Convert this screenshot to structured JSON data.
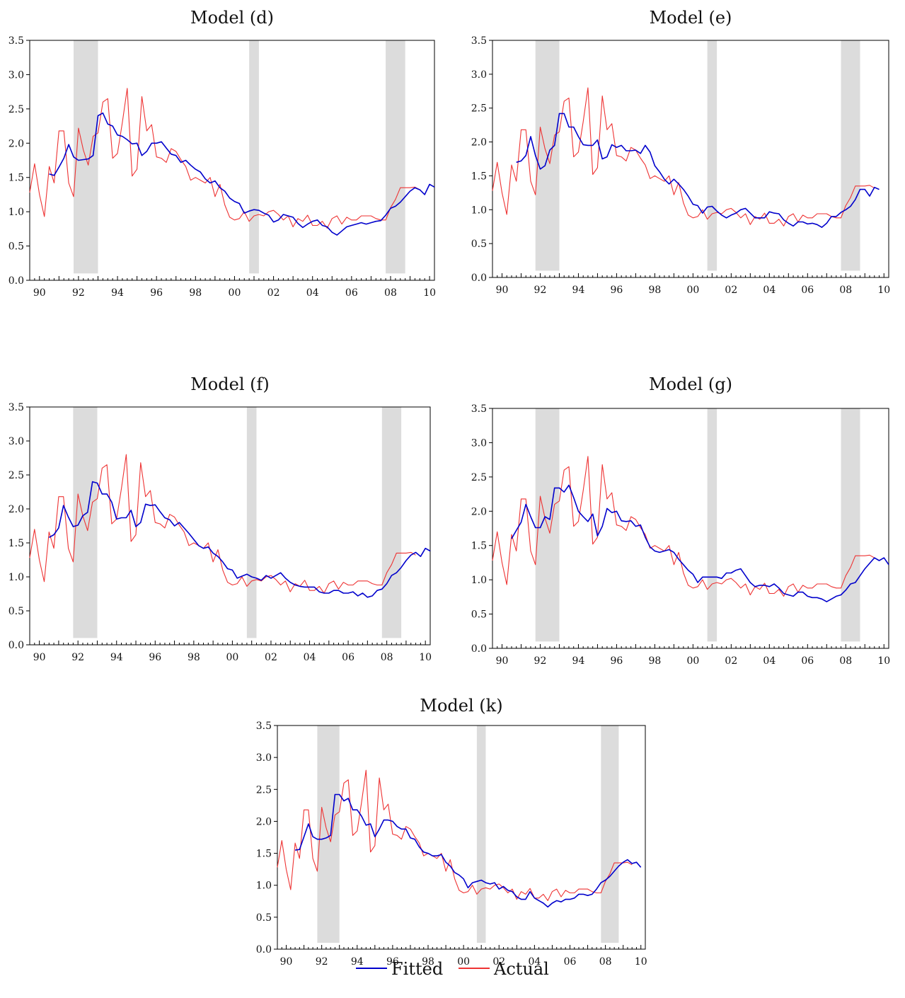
{
  "chart_data": [
    {
      "type": "line",
      "title": "Model (d)",
      "x_tick_labels": [
        "90",
        "92",
        "94",
        "96",
        "98",
        "00",
        "02",
        "04",
        "06",
        "08",
        "10"
      ],
      "y_tick_labels": [
        "0.0",
        "0.5",
        "1.0",
        "1.5",
        "2.0",
        "2.5",
        "3.0",
        "3.5"
      ],
      "ylim": [
        0,
        3.5
      ],
      "xlim": [
        1989.5,
        2010.25
      ],
      "recessions": [
        [
          1991.75,
          1993.0
        ],
        [
          2000.75,
          2001.25
        ],
        [
          2007.75,
          2008.75
        ]
      ],
      "series": [
        {
          "name": "Fitted",
          "color": "#0000cc",
          "start": 1990.5,
          "values": [
            1.55,
            1.53,
            1.65,
            1.78,
            1.98,
            1.8,
            1.75,
            1.76,
            1.77,
            1.82,
            2.4,
            2.44,
            2.28,
            2.25,
            2.12,
            2.1,
            2.05,
            1.99,
            2.0,
            1.82,
            1.88,
            2.0,
            2.0,
            2.02,
            1.93,
            1.84,
            1.82,
            1.72,
            1.75,
            1.68,
            1.62,
            1.58,
            1.48,
            1.42,
            1.45,
            1.35,
            1.3,
            1.2,
            1.15,
            1.12,
            0.98,
            1.01,
            1.03,
            1.02,
            0.98,
            0.95,
            0.85,
            0.88,
            0.96,
            0.94,
            0.92,
            0.83,
            0.77,
            0.82,
            0.86,
            0.88,
            0.8,
            0.78,
            0.7,
            0.66,
            0.72,
            0.78,
            0.8,
            0.82,
            0.84,
            0.82,
            0.84,
            0.86,
            0.87,
            0.95,
            1.05,
            1.08,
            1.14,
            1.22,
            1.3,
            1.35,
            1.32,
            1.25,
            1.4,
            1.36
          ]
        },
        {
          "name": "Actual",
          "color": "#ee3333",
          "start": 1989.5,
          "values": [
            1.28,
            1.7,
            1.25,
            0.93,
            1.66,
            1.42,
            2.18,
            2.18,
            1.42,
            1.22,
            2.22,
            1.9,
            1.68,
            2.1,
            2.15,
            2.6,
            2.65,
            1.78,
            1.85,
            2.3,
            2.8,
            1.52,
            1.62,
            2.68,
            2.18,
            2.27,
            1.8,
            1.78,
            1.72,
            1.92,
            1.88,
            1.76,
            1.66,
            1.46,
            1.5,
            1.46,
            1.42,
            1.5,
            1.22,
            1.4,
            1.1,
            0.92,
            0.88,
            0.9,
            1.0,
            0.86,
            0.94,
            0.96,
            0.94,
            1.0,
            1.02,
            0.96,
            0.88,
            0.94,
            0.78,
            0.9,
            0.86,
            0.95,
            0.8,
            0.8,
            0.86,
            0.76,
            0.9,
            0.94,
            0.82,
            0.92,
            0.88,
            0.88,
            0.94,
            0.94,
            0.94,
            0.9,
            0.88,
            0.88,
            1.06,
            1.18,
            1.35,
            1.35,
            1.35,
            1.36,
            1.32
          ]
        }
      ]
    },
    {
      "type": "line",
      "title": "Model (e)",
      "x_tick_labels": [
        "90",
        "92",
        "94",
        "96",
        "98",
        "00",
        "02",
        "04",
        "06",
        "08",
        "10"
      ],
      "y_tick_labels": [
        "0.0",
        "0.5",
        "1.0",
        "1.5",
        "2.0",
        "2.5",
        "3.0",
        "3.5"
      ],
      "ylim": [
        0,
        3.5
      ],
      "xlim": [
        1989.5,
        2010.25
      ],
      "recessions": [
        [
          1991.75,
          1993.0
        ],
        [
          2000.75,
          2001.25
        ],
        [
          2007.75,
          2008.75
        ]
      ],
      "series": [
        {
          "name": "Fitted",
          "color": "#0000cc",
          "start": 1990.75,
          "values": [
            1.7,
            1.72,
            1.8,
            2.08,
            1.8,
            1.6,
            1.65,
            1.88,
            1.95,
            2.42,
            2.42,
            2.22,
            2.22,
            2.08,
            1.96,
            1.95,
            1.95,
            2.03,
            1.75,
            1.78,
            1.96,
            1.92,
            1.95,
            1.87,
            1.87,
            1.88,
            1.83,
            1.95,
            1.85,
            1.65,
            1.56,
            1.45,
            1.38,
            1.45,
            1.38,
            1.3,
            1.2,
            1.08,
            1.06,
            0.95,
            1.04,
            1.05,
            0.98,
            0.92,
            0.88,
            0.92,
            0.95,
            1.0,
            1.02,
            0.95,
            0.88,
            0.88,
            0.88,
            0.97,
            0.95,
            0.94,
            0.85,
            0.8,
            0.76,
            0.82,
            0.82,
            0.79,
            0.8,
            0.78,
            0.74,
            0.8,
            0.9,
            0.9,
            0.96,
            1.0,
            1.05,
            1.15,
            1.3,
            1.3,
            1.2,
            1.33,
            1.3
          ]
        },
        {
          "name": "Actual",
          "color": "#ee3333",
          "start": 1989.5,
          "values": [
            1.28,
            1.7,
            1.25,
            0.93,
            1.66,
            1.42,
            2.18,
            2.18,
            1.42,
            1.22,
            2.22,
            1.9,
            1.68,
            2.1,
            2.15,
            2.6,
            2.65,
            1.78,
            1.85,
            2.3,
            2.8,
            1.52,
            1.62,
            2.68,
            2.18,
            2.27,
            1.8,
            1.78,
            1.72,
            1.92,
            1.88,
            1.76,
            1.66,
            1.46,
            1.5,
            1.46,
            1.42,
            1.5,
            1.22,
            1.4,
            1.1,
            0.92,
            0.88,
            0.9,
            1.0,
            0.86,
            0.94,
            0.96,
            0.94,
            1.0,
            1.02,
            0.96,
            0.88,
            0.94,
            0.78,
            0.9,
            0.86,
            0.95,
            0.8,
            0.8,
            0.86,
            0.76,
            0.9,
            0.94,
            0.82,
            0.92,
            0.88,
            0.88,
            0.94,
            0.94,
            0.94,
            0.9,
            0.88,
            0.88,
            1.06,
            1.18,
            1.35,
            1.35,
            1.35,
            1.36,
            1.32
          ]
        }
      ]
    },
    {
      "type": "line",
      "title": "Model (f)",
      "x_tick_labels": [
        "90",
        "92",
        "94",
        "96",
        "98",
        "00",
        "02",
        "04",
        "06",
        "08",
        "10"
      ],
      "y_tick_labels": [
        "0.0",
        "0.5",
        "1.0",
        "1.5",
        "2.0",
        "2.5",
        "3.0",
        "3.5"
      ],
      "ylim": [
        0,
        3.5
      ],
      "xlim": [
        1989.5,
        2010.25
      ],
      "recessions": [
        [
          1991.75,
          1993.0
        ],
        [
          2000.75,
          2001.25
        ],
        [
          2007.75,
          2008.75
        ]
      ],
      "series": [
        {
          "name": "Fitted",
          "color": "#0000cc",
          "start": 1990.5,
          "values": [
            1.58,
            1.62,
            1.72,
            2.05,
            1.88,
            1.74,
            1.76,
            1.9,
            1.95,
            2.4,
            2.38,
            2.22,
            2.22,
            2.1,
            1.85,
            1.87,
            1.87,
            1.98,
            1.74,
            1.8,
            2.07,
            2.05,
            2.06,
            1.96,
            1.87,
            1.84,
            1.75,
            1.8,
            1.72,
            1.64,
            1.55,
            1.46,
            1.42,
            1.44,
            1.35,
            1.3,
            1.22,
            1.12,
            1.1,
            0.98,
            1.01,
            1.04,
            1.0,
            0.98,
            0.95,
            1.02,
            0.98,
            1.02,
            1.06,
            0.98,
            0.92,
            0.88,
            0.86,
            0.85,
            0.85,
            0.85,
            0.78,
            0.76,
            0.76,
            0.8,
            0.8,
            0.76,
            0.76,
            0.78,
            0.72,
            0.76,
            0.7,
            0.72,
            0.8,
            0.82,
            0.9,
            1.02,
            1.06,
            1.14,
            1.24,
            1.32,
            1.36,
            1.3,
            1.42,
            1.38
          ]
        },
        {
          "name": "Actual",
          "color": "#ee3333",
          "start": 1989.5,
          "values": [
            1.28,
            1.7,
            1.25,
            0.93,
            1.66,
            1.42,
            2.18,
            2.18,
            1.42,
            1.22,
            2.22,
            1.9,
            1.68,
            2.1,
            2.15,
            2.6,
            2.65,
            1.78,
            1.85,
            2.3,
            2.8,
            1.52,
            1.62,
            2.68,
            2.18,
            2.27,
            1.8,
            1.78,
            1.72,
            1.92,
            1.88,
            1.76,
            1.66,
            1.46,
            1.5,
            1.46,
            1.42,
            1.5,
            1.22,
            1.4,
            1.1,
            0.92,
            0.88,
            0.9,
            1.0,
            0.86,
            0.94,
            0.96,
            0.94,
            1.0,
            1.02,
            0.96,
            0.88,
            0.94,
            0.78,
            0.9,
            0.86,
            0.95,
            0.8,
            0.8,
            0.86,
            0.76,
            0.9,
            0.94,
            0.82,
            0.92,
            0.88,
            0.88,
            0.94,
            0.94,
            0.94,
            0.9,
            0.88,
            0.88,
            1.06,
            1.18,
            1.35,
            1.35,
            1.35,
            1.36,
            1.32
          ]
        }
      ]
    },
    {
      "type": "line",
      "title": "Model (g)",
      "x_tick_labels": [
        "90",
        "92",
        "94",
        "96",
        "98",
        "00",
        "02",
        "04",
        "06",
        "08",
        "10"
      ],
      "y_tick_labels": [
        "0.0",
        "0.5",
        "1.0",
        "1.5",
        "2.0",
        "2.5",
        "3.0",
        "3.5"
      ],
      "ylim": [
        0,
        3.5
      ],
      "xlim": [
        1989.5,
        2010.25
      ],
      "recessions": [
        [
          1991.75,
          1993.0
        ],
        [
          2000.75,
          2001.25
        ],
        [
          2007.75,
          2008.75
        ]
      ],
      "series": [
        {
          "name": "Fitted",
          "color": "#0000cc",
          "start": 1990.5,
          "values": [
            1.6,
            1.72,
            1.84,
            2.1,
            1.92,
            1.76,
            1.76,
            1.92,
            1.88,
            2.34,
            2.34,
            2.28,
            2.38,
            2.2,
            2.0,
            1.92,
            1.85,
            1.96,
            1.64,
            1.78,
            2.04,
            1.98,
            2.0,
            1.86,
            1.85,
            1.86,
            1.78,
            1.8,
            1.62,
            1.48,
            1.42,
            1.4,
            1.42,
            1.44,
            1.4,
            1.3,
            1.22,
            1.14,
            1.08,
            0.96,
            1.04,
            1.04,
            1.04,
            1.04,
            1.02,
            1.1,
            1.1,
            1.14,
            1.16,
            1.06,
            0.96,
            0.9,
            0.92,
            0.92,
            0.9,
            0.94,
            0.88,
            0.8,
            0.78,
            0.76,
            0.82,
            0.82,
            0.76,
            0.74,
            0.74,
            0.72,
            0.68,
            0.72,
            0.76,
            0.78,
            0.85,
            0.94,
            0.96,
            1.06,
            1.16,
            1.24,
            1.32,
            1.28,
            1.32,
            1.22
          ]
        },
        {
          "name": "Actual",
          "color": "#ee3333",
          "start": 1989.5,
          "values": [
            1.28,
            1.7,
            1.25,
            0.93,
            1.66,
            1.42,
            2.18,
            2.18,
            1.42,
            1.22,
            2.22,
            1.9,
            1.68,
            2.1,
            2.15,
            2.6,
            2.65,
            1.78,
            1.85,
            2.3,
            2.8,
            1.52,
            1.62,
            2.68,
            2.18,
            2.27,
            1.8,
            1.78,
            1.72,
            1.92,
            1.88,
            1.76,
            1.66,
            1.46,
            1.5,
            1.46,
            1.42,
            1.5,
            1.22,
            1.4,
            1.1,
            0.92,
            0.88,
            0.9,
            1.0,
            0.86,
            0.94,
            0.96,
            0.94,
            1.0,
            1.02,
            0.96,
            0.88,
            0.94,
            0.78,
            0.9,
            0.86,
            0.95,
            0.8,
            0.8,
            0.86,
            0.76,
            0.9,
            0.94,
            0.82,
            0.92,
            0.88,
            0.88,
            0.94,
            0.94,
            0.94,
            0.9,
            0.88,
            0.88,
            1.06,
            1.18,
            1.35,
            1.35,
            1.35,
            1.36,
            1.32
          ]
        }
      ]
    },
    {
      "type": "line",
      "title": "Model (k)",
      "x_tick_labels": [
        "90",
        "92",
        "94",
        "96",
        "98",
        "00",
        "02",
        "04",
        "06",
        "08",
        "10"
      ],
      "y_tick_labels": [
        "0.0",
        "0.5",
        "1.0",
        "1.5",
        "2.0",
        "2.5",
        "3.0",
        "3.5"
      ],
      "ylim": [
        0,
        3.5
      ],
      "xlim": [
        1989.5,
        2010.25
      ],
      "recessions": [
        [
          1991.75,
          1993.0
        ],
        [
          2000.75,
          2001.25
        ],
        [
          2007.75,
          2008.75
        ]
      ],
      "series": [
        {
          "name": "Fitted",
          "color": "#0000cc",
          "start": 1990.5,
          "values": [
            1.55,
            1.56,
            1.76,
            1.96,
            1.76,
            1.72,
            1.72,
            1.74,
            1.78,
            2.42,
            2.42,
            2.32,
            2.36,
            2.18,
            2.18,
            2.08,
            1.94,
            1.96,
            1.76,
            1.88,
            2.02,
            2.02,
            2.0,
            1.92,
            1.88,
            1.88,
            1.74,
            1.72,
            1.6,
            1.52,
            1.5,
            1.46,
            1.46,
            1.48,
            1.36,
            1.3,
            1.2,
            1.16,
            1.1,
            0.96,
            1.04,
            1.06,
            1.08,
            1.04,
            1.02,
            1.04,
            0.94,
            0.98,
            0.92,
            0.9,
            0.82,
            0.78,
            0.78,
            0.9,
            0.8,
            0.76,
            0.72,
            0.66,
            0.72,
            0.76,
            0.74,
            0.78,
            0.78,
            0.8,
            0.86,
            0.86,
            0.84,
            0.86,
            0.94,
            1.04,
            1.08,
            1.14,
            1.22,
            1.3,
            1.36,
            1.4,
            1.34,
            1.36,
            1.28
          ]
        },
        {
          "name": "Actual",
          "color": "#ee3333",
          "start": 1989.5,
          "values": [
            1.28,
            1.7,
            1.25,
            0.93,
            1.66,
            1.42,
            2.18,
            2.18,
            1.42,
            1.22,
            2.22,
            1.9,
            1.68,
            2.1,
            2.15,
            2.6,
            2.65,
            1.78,
            1.85,
            2.3,
            2.8,
            1.52,
            1.62,
            2.68,
            2.18,
            2.27,
            1.8,
            1.78,
            1.72,
            1.92,
            1.88,
            1.76,
            1.66,
            1.46,
            1.5,
            1.46,
            1.42,
            1.5,
            1.22,
            1.4,
            1.1,
            0.92,
            0.88,
            0.9,
            1.0,
            0.86,
            0.94,
            0.96,
            0.94,
            1.0,
            1.02,
            0.96,
            0.88,
            0.94,
            0.78,
            0.9,
            0.86,
            0.95,
            0.8,
            0.8,
            0.86,
            0.76,
            0.9,
            0.94,
            0.82,
            0.92,
            0.88,
            0.88,
            0.94,
            0.94,
            0.94,
            0.9,
            0.88,
            0.88,
            1.06,
            1.18,
            1.35,
            1.35,
            1.35,
            1.36,
            1.32
          ]
        }
      ]
    }
  ],
  "legend": {
    "items": [
      {
        "label": "Fitted",
        "color": "#0000cc"
      },
      {
        "label": "Actual",
        "color": "#ee3333"
      }
    ]
  }
}
